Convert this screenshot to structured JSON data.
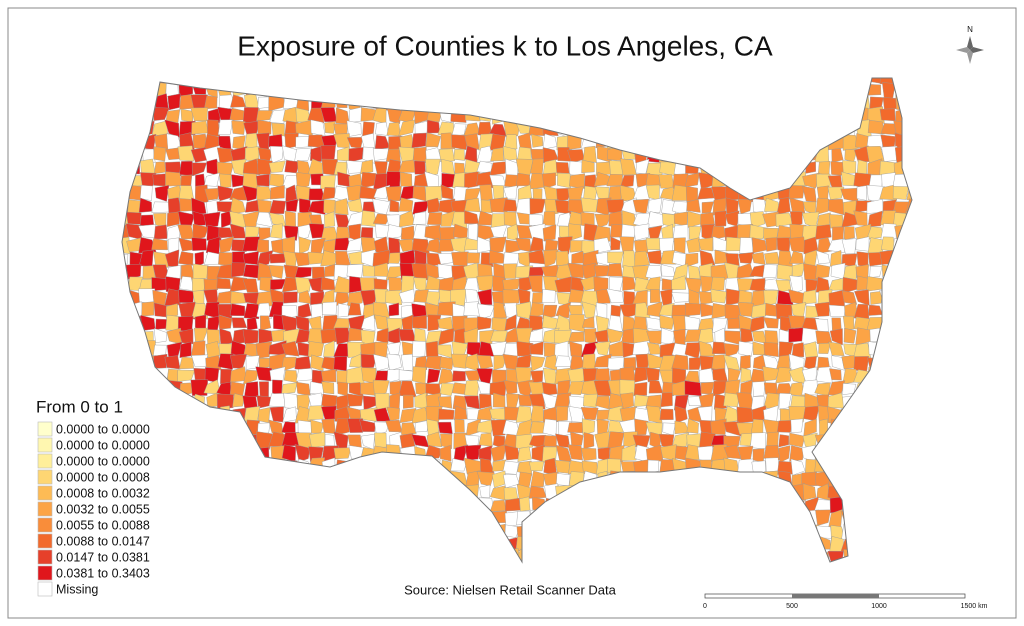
{
  "title": "Exposure of Counties k to Los Angeles, CA",
  "legend": {
    "title": "From 0 to 1",
    "items": [
      {
        "label": "0.0000 to 0.0000",
        "color": "#ffffcc"
      },
      {
        "label": "0.0000 to 0.0000",
        "color": "#fff7b0"
      },
      {
        "label": "0.0000 to 0.0000",
        "color": "#ffef9a"
      },
      {
        "label": "0.0000 to 0.0008",
        "color": "#fed673"
      },
      {
        "label": "0.0008 to 0.0032",
        "color": "#fdbb55"
      },
      {
        "label": "0.0032 to 0.0055",
        "color": "#fca446"
      },
      {
        "label": "0.0055 to 0.0088",
        "color": "#f98d3a"
      },
      {
        "label": "0.0088 to 0.0147",
        "color": "#f26a2c"
      },
      {
        "label": "0.0147 to 0.0381",
        "color": "#e6402a"
      },
      {
        "label": "0.0381 to 0.3403",
        "color": "#e0161c"
      },
      {
        "label": "Missing",
        "color": "#ffffff"
      }
    ]
  },
  "source": "Source: Nielsen Retail Scanner Data",
  "scale_bar": {
    "labels": [
      "0",
      "500",
      "1000",
      "1500 km"
    ]
  },
  "north_arrow": "N"
}
